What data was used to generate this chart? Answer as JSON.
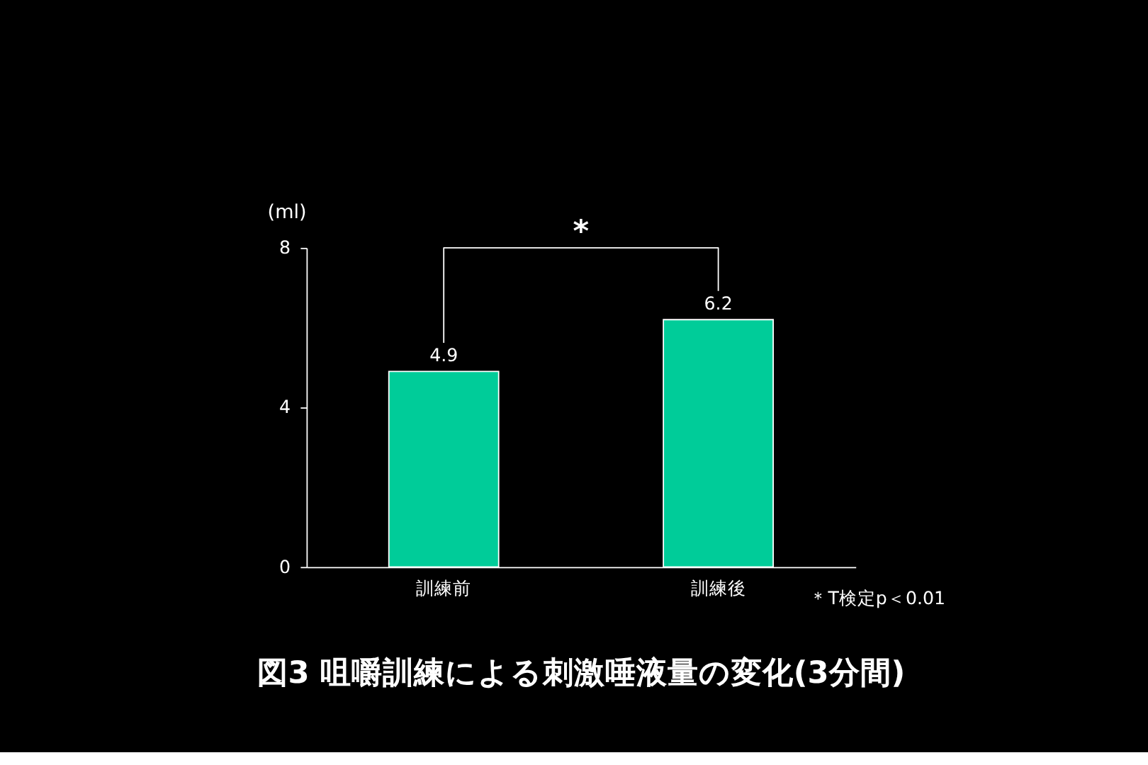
{
  "chart_data": {
    "type": "bar",
    "title": "図3  咀嚼訓練による刺激唾液量の変化(3分間)",
    "ylabel": "(ml)",
    "categories": [
      "訓練前",
      "訓練後"
    ],
    "values": [
      4.9,
      6.2
    ],
    "color": "#00cc99",
    "ylim": [
      0,
      8
    ],
    "yticks": [
      0,
      4,
      8
    ],
    "data_labels": true,
    "grid": false,
    "annotations": [
      "*",
      "＊T検定p＜0.01"
    ]
  }
}
